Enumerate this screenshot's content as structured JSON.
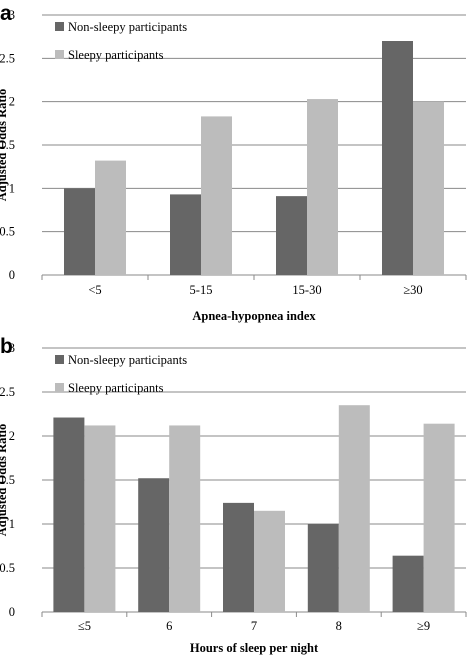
{
  "chart_data": [
    {
      "type": "bar",
      "panel_label": "a",
      "categories": [
        "<5",
        "5-15",
        "15-30",
        "≥30"
      ],
      "series": [
        {
          "name": "Non-sleepy participants",
          "values": [
            1.0,
            0.93,
            0.91,
            2.7
          ],
          "color": "#666666"
        },
        {
          "name": "Sleepy participants",
          "values": [
            1.32,
            1.83,
            2.03,
            2.0
          ],
          "color": "#bcbcbc"
        }
      ],
      "xlabel": "Apnea-hypopnea index",
      "ylabel": "Adjusted Odds Ratio",
      "ylim": [
        0,
        3
      ],
      "yticks": [
        "0",
        "0.5",
        "1",
        "1.5",
        "2",
        "2.5",
        "3"
      ],
      "grid": true,
      "legend_position": "top-left"
    },
    {
      "type": "bar",
      "panel_label": "b",
      "categories": [
        "≤5",
        "6",
        "7",
        "8",
        "≥9"
      ],
      "series": [
        {
          "name": "Non-sleepy participants",
          "values": [
            2.21,
            1.52,
            1.24,
            1.0,
            0.64
          ],
          "color": "#666666"
        },
        {
          "name": "Sleepy participants",
          "values": [
            2.12,
            2.12,
            1.15,
            2.35,
            2.14
          ],
          "color": "#bcbcbc"
        }
      ],
      "xlabel": "Hours of sleep per night",
      "ylabel": "Adjusted Odds Ratio",
      "ylim": [
        0,
        3
      ],
      "yticks": [
        "0",
        "0.5",
        "1",
        "1.5",
        "2",
        "2.5",
        "3"
      ],
      "grid": true,
      "legend_position": "top-left"
    }
  ]
}
